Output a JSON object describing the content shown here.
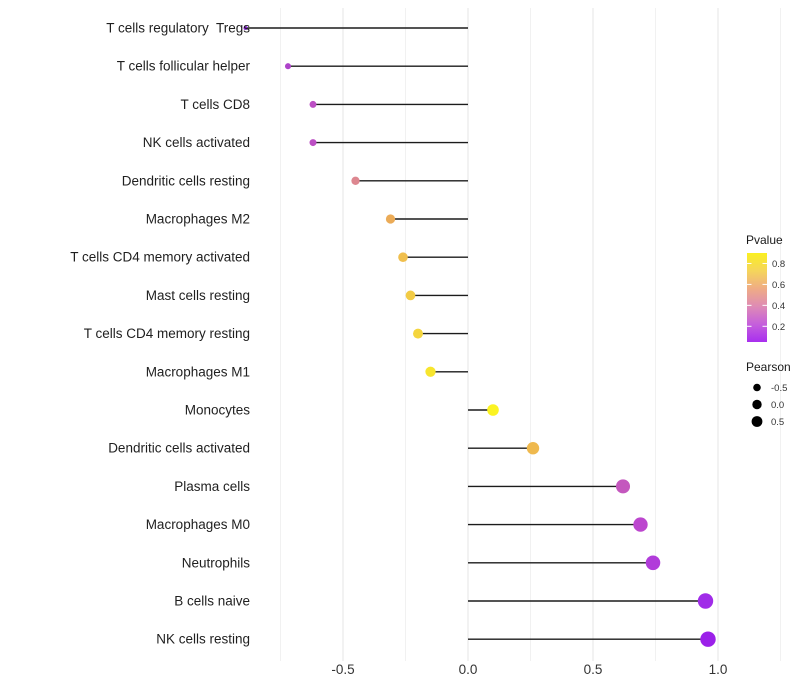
{
  "chart_data": {
    "type": "scatter",
    "variant": "lollipop",
    "orientation": "horizontal",
    "title": "",
    "xlabel": "",
    "ylabel": "",
    "x_ticks": [
      "-0.5",
      "0.0",
      "0.5",
      "1.0"
    ],
    "x_tick_values": [
      -0.5,
      0.0,
      0.5,
      1.0
    ],
    "xlim": [
      -0.93,
      1.31
    ],
    "grid_values": [
      -0.75,
      -0.5,
      -0.25,
      0,
      0.25,
      0.5,
      0.75,
      1.0,
      1.25
    ],
    "baseline": 0,
    "grid": "on",
    "legend_position": "right",
    "items": [
      {
        "label": "T cells regulatory  Tregs",
        "pearson": -0.89,
        "pvalue_est": 0.01,
        "color": "#8E24DC"
      },
      {
        "label": "T cells follicular helper",
        "pearson": -0.72,
        "pvalue_est": 0.09,
        "color": "#AE43CA"
      },
      {
        "label": "T cells CD8",
        "pearson": -0.62,
        "pvalue_est": 0.14,
        "color": "#BC4FC4"
      },
      {
        "label": "NK cells activated",
        "pearson": -0.62,
        "pvalue_est": 0.14,
        "color": "#BC4FC4"
      },
      {
        "label": "Dendritic cells resting",
        "pearson": -0.45,
        "pvalue_est": 0.4,
        "color": "#DD8790"
      },
      {
        "label": "Macrophages M2",
        "pearson": -0.31,
        "pvalue_est": 0.55,
        "color": "#EBAB57"
      },
      {
        "label": "T cells CD4 memory activated",
        "pearson": -0.26,
        "pvalue_est": 0.62,
        "color": "#F0BF4D"
      },
      {
        "label": "Mast cells resting",
        "pearson": -0.23,
        "pvalue_est": 0.67,
        "color": "#F2CB45"
      },
      {
        "label": "T cells CD4 memory resting",
        "pearson": -0.2,
        "pvalue_est": 0.71,
        "color": "#F4D53E"
      },
      {
        "label": "Macrophages M1",
        "pearson": -0.15,
        "pvalue_est": 0.79,
        "color": "#F7E52E"
      },
      {
        "label": "Monocytes",
        "pearson": 0.1,
        "pvalue_est": 0.88,
        "color": "#FBF322"
      },
      {
        "label": "Dendritic cells activated",
        "pearson": 0.26,
        "pvalue_est": 0.61,
        "color": "#EFB94E"
      },
      {
        "label": "Plasma cells",
        "pearson": 0.62,
        "pvalue_est": 0.2,
        "color": "#C457BE"
      },
      {
        "label": "Macrophages M0",
        "pearson": 0.69,
        "pvalue_est": 0.15,
        "color": "#BC46CE"
      },
      {
        "label": "Neutrophils",
        "pearson": 0.74,
        "pvalue_est": 0.11,
        "color": "#B13CDA"
      },
      {
        "label": "B cells naive",
        "pearson": 0.95,
        "pvalue_est": 0.02,
        "color": "#A02CE8"
      },
      {
        "label": "NK cells resting",
        "pearson": 0.96,
        "pvalue_est": 0.01,
        "color": "#9B20E9"
      }
    ]
  },
  "legend": {
    "pvalue": {
      "title": "Pvalue",
      "tick_labels": [
        "0.8",
        "0.6",
        "0.4",
        "0.2"
      ],
      "tick_values": [
        0.8,
        0.6,
        0.4,
        0.2
      ],
      "bar_range": [
        0.9,
        0.05
      ],
      "gradient_stops": [
        "#FAF021",
        "#F5D55B",
        "#EFAC85",
        "#DE8BB5",
        "#C55FDC",
        "#A82FEE"
      ]
    },
    "pearson": {
      "title": "Pearson",
      "entry_labels": [
        "-0.5",
        "0.0",
        "0.5"
      ],
      "entry_values": [
        -0.5,
        0.0,
        0.5
      ],
      "dot_color": "#000000"
    }
  },
  "colors": {
    "background": "#ffffff",
    "stem": "#1c1c1c",
    "grid_major": "#e6e6e6",
    "grid_minor": "#f1f1f1",
    "axis_text": "#343434",
    "category_text": "#1f1f1f"
  }
}
